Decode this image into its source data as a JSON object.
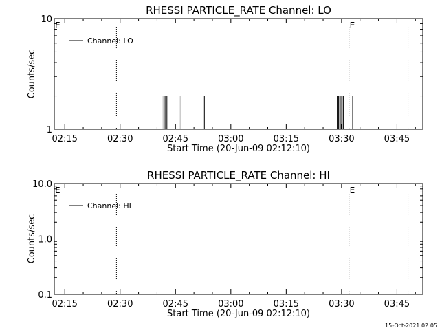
{
  "footer": {
    "timestamp": "15-Oct-2021 02:05"
  },
  "chart_data": [
    {
      "type": "line",
      "title": "RHESSI PARTICLE_RATE Channel: LO",
      "xlabel": "Start Time (20-Jun-09 02:12:10)",
      "ylabel": "Counts/sec",
      "x_unit": "minutes",
      "xlim": [
        "02:12:10",
        "03:52:00"
      ],
      "x_ticks": [
        "02:15",
        "02:30",
        "02:45",
        "03:00",
        "03:15",
        "03:30",
        "03:45"
      ],
      "y_scale": "log",
      "ylim": [
        1,
        10
      ],
      "y_ticks": [
        "1",
        "10"
      ],
      "legend": {
        "position": "top-left",
        "entries": [
          "Channel: LO"
        ]
      },
      "annotations": [
        {
          "label": "E",
          "time": "02:12:10"
        },
        {
          "label": "E",
          "time": "03:32:00"
        }
      ],
      "vlines": [
        "02:29:00",
        "03:32:00",
        "03:48:00"
      ],
      "series": [
        {
          "name": "Channel: LO",
          "points": [
            [
              "02:13:00",
              1
            ],
            [
              "02:41:20",
              1
            ],
            [
              "02:41:20",
              2
            ],
            [
              "02:41:50",
              2
            ],
            [
              "02:41:50",
              1
            ],
            [
              "02:42:10",
              1
            ],
            [
              "02:42:10",
              2
            ],
            [
              "02:42:40",
              2
            ],
            [
              "02:42:40",
              1
            ],
            [
              "02:46:00",
              1
            ],
            [
              "02:46:00",
              2
            ],
            [
              "02:46:30",
              2
            ],
            [
              "02:46:30",
              1
            ],
            [
              "02:52:30",
              1
            ],
            [
              "02:52:30",
              2
            ],
            [
              "02:52:50",
              2
            ],
            [
              "02:52:50",
              1
            ],
            [
              "03:28:50",
              1
            ],
            [
              "03:28:50",
              2
            ],
            [
              "03:29:10",
              2
            ],
            [
              "03:29:10",
              1
            ],
            [
              "03:29:30",
              1
            ],
            [
              "03:29:30",
              2
            ],
            [
              "03:29:50",
              2
            ],
            [
              "03:29:50",
              1
            ],
            [
              "03:30:10",
              1
            ],
            [
              "03:30:10",
              2
            ],
            [
              "03:30:30",
              2
            ],
            [
              "03:30:30",
              1
            ],
            [
              "03:30:40",
              1
            ],
            [
              "03:30:40",
              2
            ],
            [
              "03:33:00",
              2
            ],
            [
              "03:33:00",
              1
            ]
          ]
        }
      ]
    },
    {
      "type": "line",
      "title": "RHESSI PARTICLE_RATE Channel: HI",
      "xlabel": "Start Time (20-Jun-09 02:12:10)",
      "ylabel": "Counts/sec",
      "x_unit": "minutes",
      "xlim": [
        "02:12:10",
        "03:52:00"
      ],
      "x_ticks": [
        "02:15",
        "02:30",
        "02:45",
        "03:00",
        "03:15",
        "03:30",
        "03:45"
      ],
      "y_scale": "log",
      "ylim": [
        0.1,
        10
      ],
      "y_ticks": [
        "0.1",
        "1.0",
        "10.0"
      ],
      "legend": {
        "position": "top-left",
        "entries": [
          "Channel: HI"
        ]
      },
      "annotations": [
        {
          "label": "E",
          "time": "02:12:10"
        },
        {
          "label": "E",
          "time": "03:32:00"
        }
      ],
      "vlines": [
        "02:29:00",
        "03:32:00",
        "03:48:00"
      ],
      "series": [
        {
          "name": "Channel: HI",
          "points": []
        }
      ]
    }
  ]
}
